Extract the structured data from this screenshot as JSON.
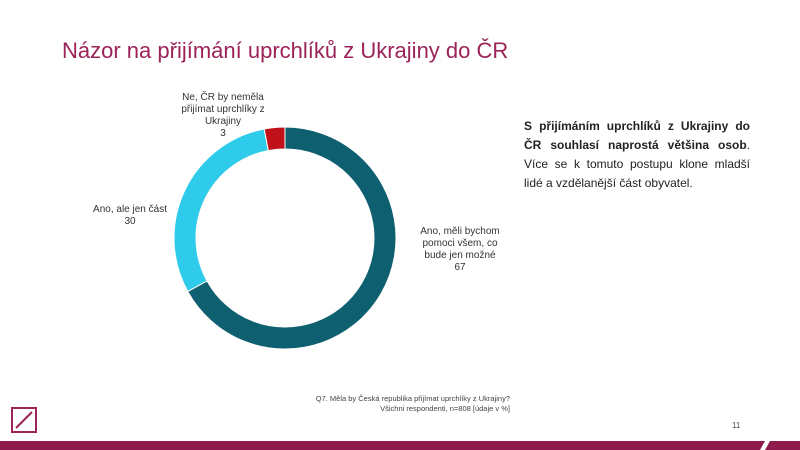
{
  "chart_data": {
    "type": "donut",
    "title": "Názor na přijímání uprchlíků z Ukrajiny do ČR",
    "categories": [
      "Ano, měli bychom pomoci všem, co bude jen možné",
      "Ano, ale jen část",
      "Ne, ČR by neměla přijímat uprchlíky z Ukrajiny"
    ],
    "values": [
      67,
      30,
      3
    ],
    "colors": [
      "#0e5f6f",
      "#2fcbea",
      "#c0111a"
    ]
  },
  "summary": {
    "bold": "S přijímáním uprchlíků z Ukrajiny do ČR souhlasí naprostá většina osob",
    "rest": ". Více se k tomuto postupu klone mladší lidé a vzdělanější část obyvatel."
  },
  "footnote": [
    "Q7. Měla by Česká republika přijímat uprchlíky z Ukrajiny?",
    "Všichni respondenti, n=808 [údaje v %]"
  ],
  "page_number": "11"
}
